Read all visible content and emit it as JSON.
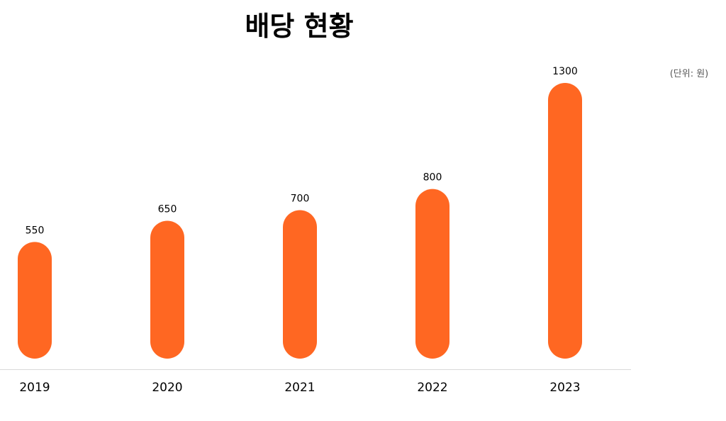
{
  "chart_data": {
    "type": "bar",
    "title": "배당 현황",
    "unit": "(단위: 원)",
    "categories": [
      "2019",
      "2020",
      "2021",
      "2022",
      "2023"
    ],
    "values": [
      550,
      650,
      700,
      800,
      1300
    ],
    "data_labels": true,
    "grid": false,
    "legend": "none",
    "colors": {
      "bar": "#FF6722",
      "baseline": "#D9D9D9"
    }
  }
}
